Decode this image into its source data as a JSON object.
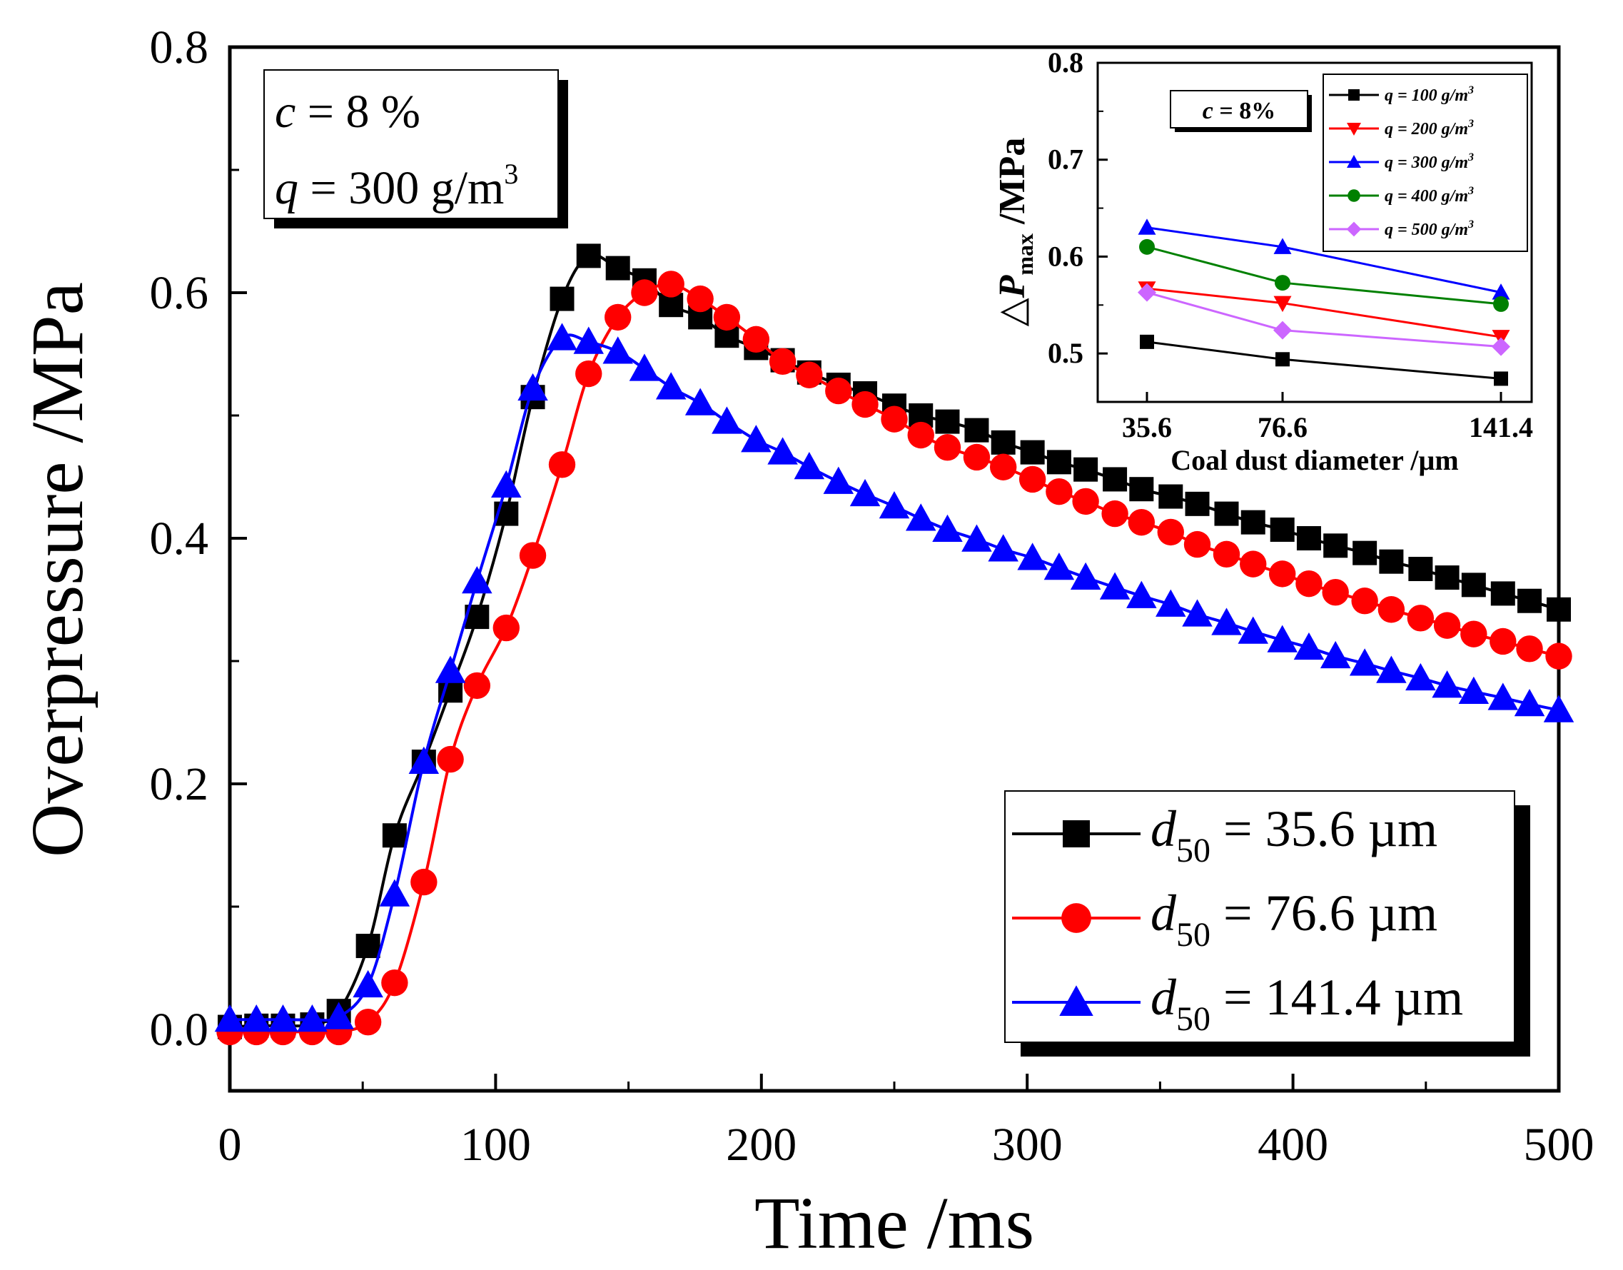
{
  "chart_data": [
    {
      "type": "line",
      "name": "main",
      "xlabel": "Time /ms",
      "ylabel": "Overpressure /MPa",
      "xlim": [
        0,
        500
      ],
      "ylim": [
        -0.05,
        0.8
      ],
      "x_ticks": [
        "0",
        "100",
        "200",
        "300",
        "400",
        "500"
      ],
      "y_ticks": [
        "0.0",
        "0.2",
        "0.4",
        "0.6",
        "0.8"
      ],
      "annotation": {
        "c_line": {
          "var": "c",
          "rest": " = 8 %"
        },
        "q_line": {
          "var": "q",
          "rest": " = 300 g/m",
          "sup": "3"
        }
      },
      "legend": {
        "position": "bottom-right",
        "entries": [
          {
            "sym": "d",
            "sub": "50",
            "rest": " = 35.6 µm"
          },
          {
            "sym": "d",
            "sub": "50",
            "rest": " = 76.6 µm"
          },
          {
            "sym": "d",
            "sub": "50",
            "rest": " = 141.4 µm"
          }
        ]
      },
      "series": [
        {
          "name": "d50 = 35.6 µm",
          "color": "#000000",
          "marker": "square",
          "x": [
            0,
            10,
            20,
            31,
            41,
            52,
            62,
            73,
            83,
            93,
            104,
            114,
            125,
            135,
            146,
            156,
            166,
            177,
            187,
            198,
            208,
            218,
            229,
            239,
            250,
            260,
            270,
            281,
            291,
            302,
            312,
            322,
            333,
            343,
            354,
            364,
            375,
            385,
            396,
            406,
            416,
            427,
            437,
            448,
            458,
            468,
            479,
            489,
            500
          ],
          "y": [
            0.002,
            0.003,
            0.003,
            0.004,
            0.015,
            0.068,
            0.158,
            0.218,
            0.276,
            0.336,
            0.42,
            0.515,
            0.595,
            0.63,
            0.62,
            0.61,
            0.59,
            0.58,
            0.565,
            0.555,
            0.545,
            0.535,
            0.525,
            0.518,
            0.508,
            0.5,
            0.495,
            0.488,
            0.478,
            0.47,
            0.462,
            0.456,
            0.448,
            0.44,
            0.434,
            0.428,
            0.42,
            0.413,
            0.407,
            0.4,
            0.394,
            0.388,
            0.381,
            0.375,
            0.368,
            0.362,
            0.355,
            0.349,
            0.342
          ]
        },
        {
          "name": "d50 = 76.6 µm",
          "color": "#ff0000",
          "marker": "circle",
          "x": [
            0,
            10,
            20,
            31,
            41,
            52,
            62,
            73,
            83,
            93,
            104,
            114,
            125,
            135,
            146,
            156,
            166,
            177,
            187,
            198,
            208,
            218,
            229,
            239,
            250,
            260,
            270,
            281,
            291,
            302,
            312,
            322,
            333,
            343,
            354,
            364,
            375,
            385,
            396,
            406,
            416,
            427,
            437,
            448,
            458,
            468,
            479,
            489,
            500
          ],
          "y": [
            -0.002,
            -0.002,
            -0.002,
            -0.002,
            -0.002,
            0.006,
            0.038,
            0.12,
            0.22,
            0.28,
            0.327,
            0.386,
            0.46,
            0.534,
            0.58,
            0.6,
            0.607,
            0.595,
            0.58,
            0.562,
            0.544,
            0.533,
            0.52,
            0.509,
            0.497,
            0.484,
            0.474,
            0.466,
            0.458,
            0.448,
            0.438,
            0.43,
            0.42,
            0.413,
            0.405,
            0.395,
            0.387,
            0.379,
            0.371,
            0.363,
            0.356,
            0.349,
            0.342,
            0.335,
            0.329,
            0.322,
            0.316,
            0.31,
            0.304
          ]
        },
        {
          "name": "d50 = 141.4 µm",
          "color": "#0000ff",
          "marker": "triangle",
          "x": [
            0,
            10,
            20,
            31,
            41,
            52,
            62,
            73,
            83,
            93,
            104,
            114,
            125,
            135,
            146,
            156,
            166,
            177,
            187,
            198,
            208,
            218,
            229,
            239,
            250,
            260,
            270,
            281,
            291,
            302,
            312,
            322,
            333,
            343,
            354,
            364,
            375,
            385,
            396,
            406,
            416,
            427,
            437,
            448,
            458,
            468,
            479,
            489,
            500
          ],
          "y": [
            0.008,
            0.008,
            0.008,
            0.008,
            0.01,
            0.036,
            0.11,
            0.218,
            0.292,
            0.365,
            0.443,
            0.522,
            0.563,
            0.56,
            0.552,
            0.538,
            0.523,
            0.51,
            0.495,
            0.48,
            0.47,
            0.458,
            0.446,
            0.436,
            0.426,
            0.416,
            0.407,
            0.399,
            0.391,
            0.384,
            0.376,
            0.368,
            0.36,
            0.353,
            0.346,
            0.338,
            0.331,
            0.324,
            0.317,
            0.311,
            0.304,
            0.298,
            0.292,
            0.286,
            0.28,
            0.275,
            0.27,
            0.265,
            0.26
          ]
        }
      ]
    },
    {
      "type": "line",
      "name": "inset",
      "xlabel": "Coal dust diameter /µm",
      "ylabel": {
        "prefix": "△",
        "var": "P",
        "sub": "max",
        "rest": " /MPa"
      },
      "categories": [
        "35.6",
        "76.6",
        "141.4"
      ],
      "ylim": [
        0.45,
        0.8
      ],
      "y_ticks": [
        "0.5",
        "0.6",
        "0.7",
        "0.8"
      ],
      "annotation": {
        "var": "c",
        "rest": " = 8%"
      },
      "legend": {
        "position": "top-right",
        "entries": [
          {
            "var": "q",
            "rest": " = 100 g/m",
            "sup": "3"
          },
          {
            "var": "q",
            "rest": " = 200 g/m",
            "sup": "3"
          },
          {
            "var": "q",
            "rest": " = 300 g/m",
            "sup": "3"
          },
          {
            "var": "q",
            "rest": " = 400 g/m",
            "sup": "3"
          },
          {
            "var": "q",
            "rest": " = 500 g/m",
            "sup": "3"
          }
        ]
      },
      "series": [
        {
          "name": "q = 100 g/m3",
          "color": "#000000",
          "marker": "square",
          "values": [
            0.512,
            0.494,
            0.474
          ]
        },
        {
          "name": "q = 200 g/m3",
          "color": "#ff0000",
          "marker": "triangle-down",
          "values": [
            0.567,
            0.552,
            0.517
          ]
        },
        {
          "name": "q = 300 g/m3",
          "color": "#0000ff",
          "marker": "triangle",
          "values": [
            0.63,
            0.61,
            0.563
          ]
        },
        {
          "name": "q = 400 g/m3",
          "color": "#008000",
          "marker": "circle",
          "values": [
            0.61,
            0.573,
            0.551
          ]
        },
        {
          "name": "q = 500 g/m3",
          "color": "#cc66ff",
          "marker": "diamond",
          "values": [
            0.563,
            0.524,
            0.507
          ]
        }
      ]
    }
  ]
}
